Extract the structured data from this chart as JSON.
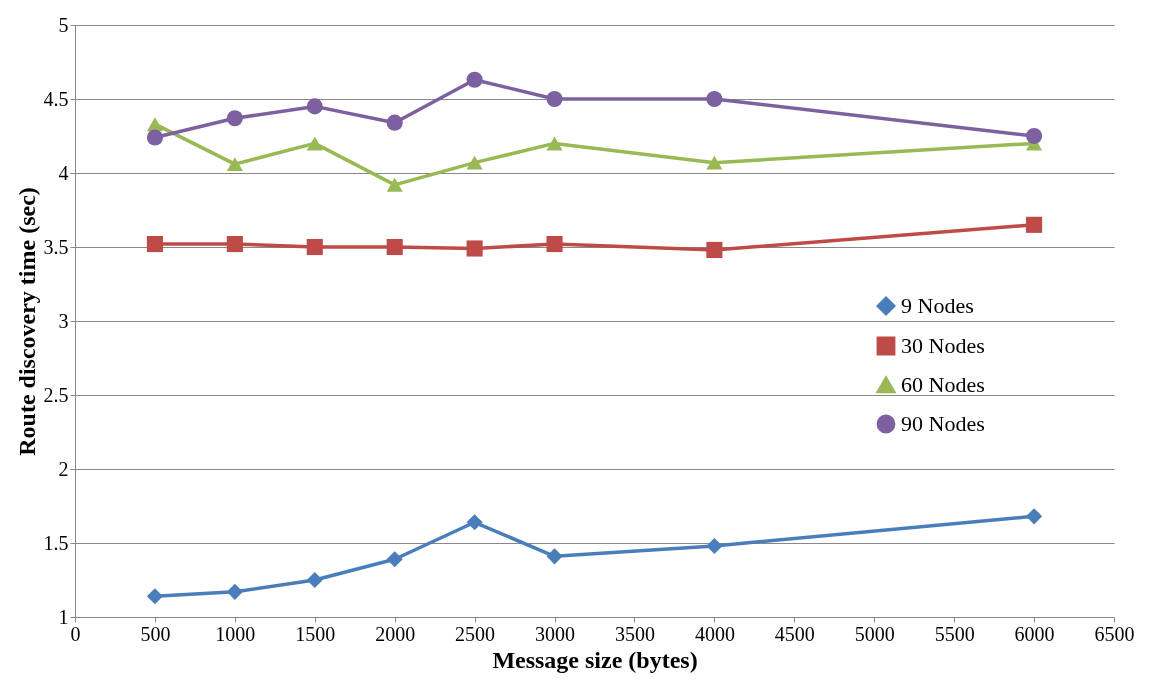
{
  "chart_data": {
    "type": "line",
    "xlabel": "Message size (bytes)",
    "ylabel": "Route discovery time (sec)",
    "x": [
      500,
      1000,
      1500,
      2000,
      2500,
      3000,
      4000,
      6000
    ],
    "series": [
      {
        "name": "9 Nodes",
        "color": "#4a7ebb",
        "marker": "diamond",
        "values": [
          1.14,
          1.17,
          1.25,
          1.39,
          1.64,
          1.41,
          1.48,
          1.68
        ]
      },
      {
        "name": "30 Nodes",
        "color": "#be4b48",
        "marker": "square",
        "values": [
          3.52,
          3.52,
          3.5,
          3.5,
          3.49,
          3.52,
          3.48,
          3.65
        ]
      },
      {
        "name": "60 Nodes",
        "color": "#98b954",
        "marker": "triangle",
        "values": [
          4.33,
          4.06,
          4.2,
          3.92,
          4.07,
          4.2,
          4.07,
          4.2
        ]
      },
      {
        "name": "90 Nodes",
        "color": "#7d60a0",
        "marker": "circle",
        "values": [
          4.24,
          4.37,
          4.45,
          4.34,
          4.63,
          4.5,
          4.5,
          4.25
        ]
      }
    ],
    "xlim": [
      0,
      6500
    ],
    "xticks": [
      0,
      500,
      1000,
      1500,
      2000,
      2500,
      3000,
      3500,
      4000,
      4500,
      5000,
      5500,
      6000,
      6500
    ],
    "ylim": [
      1,
      5
    ],
    "yticks": [
      1,
      1.5,
      2,
      2.5,
      3,
      3.5,
      4,
      4.5,
      5
    ],
    "grid": "y",
    "legend": "right",
    "line_style": "solid"
  }
}
